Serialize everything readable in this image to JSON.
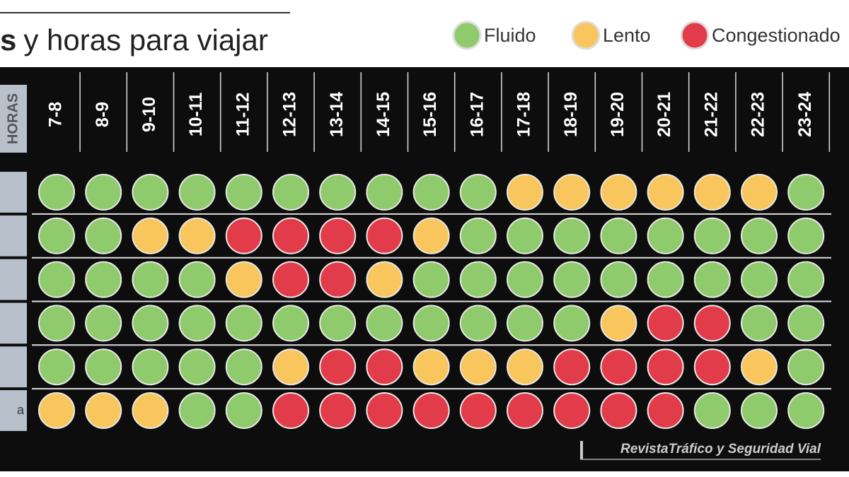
{
  "header": {
    "title_bold": "s",
    "title": "y horas para viajar"
  },
  "legend": [
    {
      "label": "Fluido",
      "color": "#8fcb6c"
    },
    {
      "label": "Lento",
      "color": "#f8c65c"
    },
    {
      "label": "Congestionado",
      "color": "#e23b4a"
    }
  ],
  "table": {
    "corner_label": "HORAS",
    "hours": [
      "7-8",
      "8-9",
      "9-10",
      "10-11",
      "11-12",
      "12-13",
      "13-14",
      "14-15",
      "15-16",
      "16-17",
      "17-18",
      "18-19",
      "19-20",
      "20-21",
      "21-22",
      "22-23",
      "23-24"
    ],
    "rows": [
      {
        "label": null,
        "status": [
          0,
          0,
          0,
          0,
          0,
          0,
          0,
          0,
          0,
          0,
          1,
          1,
          1,
          1,
          1,
          1,
          0
        ]
      },
      {
        "label": null,
        "status": [
          0,
          0,
          1,
          1,
          2,
          2,
          2,
          2,
          1,
          0,
          0,
          0,
          0,
          0,
          0,
          0,
          0
        ]
      },
      {
        "label": null,
        "status": [
          0,
          0,
          0,
          0,
          1,
          2,
          2,
          1,
          0,
          0,
          0,
          0,
          0,
          0,
          0,
          0,
          0
        ]
      },
      {
        "label": null,
        "status": [
          0,
          0,
          0,
          0,
          0,
          0,
          0,
          0,
          0,
          0,
          0,
          0,
          1,
          2,
          2,
          0,
          0
        ]
      },
      {
        "label": null,
        "status": [
          0,
          0,
          0,
          0,
          0,
          1,
          2,
          2,
          1,
          1,
          1,
          2,
          2,
          2,
          2,
          1,
          0
        ]
      },
      {
        "label": "a",
        "status": [
          1,
          1,
          1,
          0,
          0,
          2,
          2,
          2,
          2,
          2,
          2,
          2,
          2,
          2,
          0,
          0,
          0
        ]
      }
    ]
  },
  "credit": "RevistaTráfico y Seguridad Vial"
}
